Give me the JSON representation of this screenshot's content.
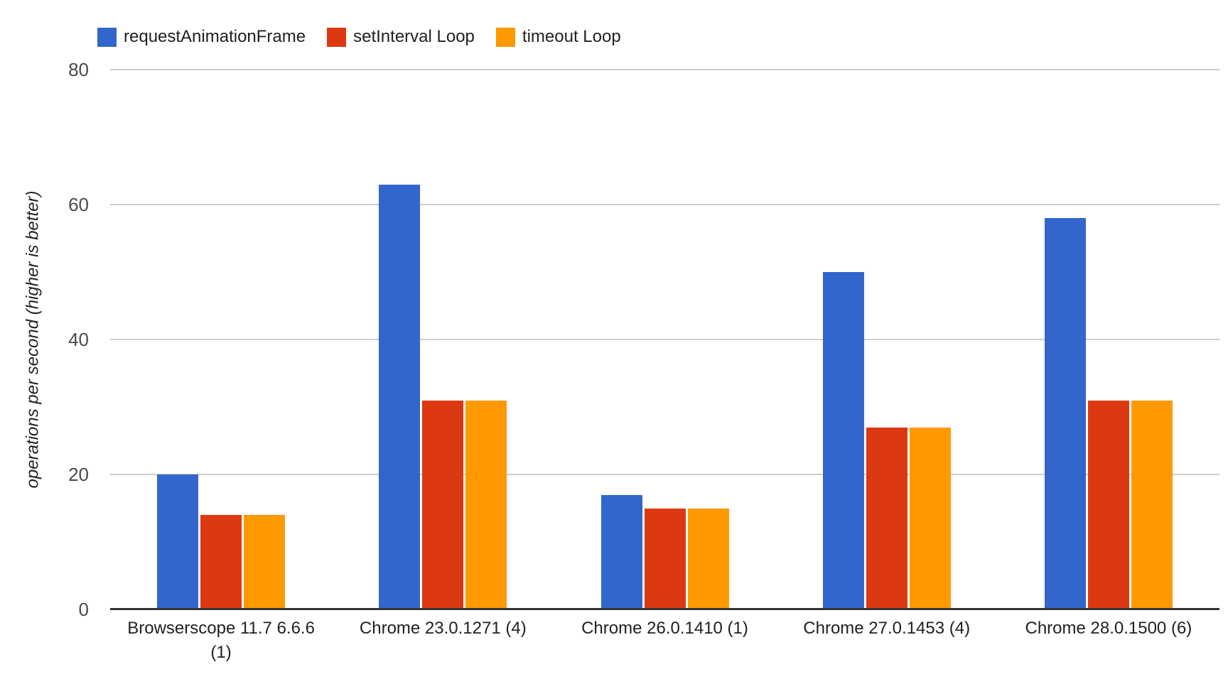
{
  "chart_data": {
    "type": "bar",
    "title": "",
    "ylabel": "operations per second (higher is better)",
    "xlabel": "",
    "ylim": [
      0,
      80
    ],
    "yticks": [
      0,
      20,
      40,
      60,
      80
    ],
    "grid": true,
    "legend_position": "top-left",
    "background_color": "#ffffff",
    "gridline_color": "#cccccc",
    "baseline_color": "#333333",
    "categories": [
      "Browserscope 11.7 6.6.6 (1)",
      "Chrome 23.0.1271 (4)",
      "Chrome 26.0.1410 (1)",
      "Chrome 27.0.1453 (4)",
      "Chrome 28.0.1500 (6)"
    ],
    "series": [
      {
        "name": "requestAnimationFrame",
        "color": "#3366CC",
        "values": [
          20,
          63,
          17,
          50,
          58
        ]
      },
      {
        "name": "setInterval Loop",
        "color": "#DC3912",
        "values": [
          14,
          31,
          15,
          27,
          31
        ]
      },
      {
        "name": "timeout Loop",
        "color": "#FF9900",
        "values": [
          14,
          31,
          15,
          27,
          31
        ]
      }
    ]
  }
}
